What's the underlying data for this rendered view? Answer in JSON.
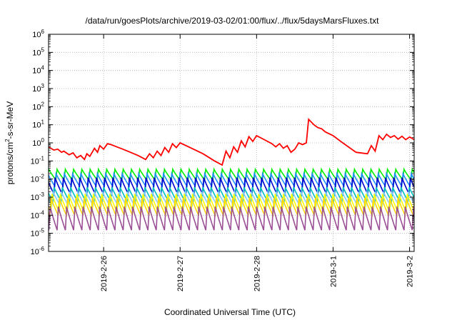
{
  "chart_data": {
    "type": "line",
    "title": "/data/run/goesPlots/archive/2019-03-02/01:00/flux/../flux/5daysMarsFluxes.txt",
    "xlabel": "Coordinated Universal Time (UTC)",
    "ylabel": "protons/cm2-s-sr-MeV",
    "ylabel_parts": {
      "prefix": "protons/cm",
      "superscript": "2",
      "suffix": "-s-sr-MeV"
    },
    "yscale": "log",
    "ylim": [
      1e-06,
      1000000.0
    ],
    "xlim_days": [
      -0.72,
      4.06
    ],
    "grid": true,
    "legend": "none",
    "x_ticks": [
      {
        "label": "2019-2-26",
        "day": 0
      },
      {
        "label": "2019-2-27",
        "day": 1
      },
      {
        "label": "2019-2-28",
        "day": 2
      },
      {
        "label": "2019-3-1",
        "day": 3
      },
      {
        "label": "2019-3-2",
        "day": 4
      }
    ],
    "y_ticks": [
      {
        "base": "10",
        "exp": "-6",
        "value": 1e-06
      },
      {
        "base": "10",
        "exp": "-5",
        "value": 1e-05
      },
      {
        "base": "10",
        "exp": "-4",
        "value": 0.0001
      },
      {
        "base": "10",
        "exp": "-3",
        "value": 0.001
      },
      {
        "base": "10",
        "exp": "-2",
        "value": 0.01
      },
      {
        "base": "10",
        "exp": "-1",
        "value": 0.1
      },
      {
        "base": "10",
        "exp": "0",
        "value": 1
      },
      {
        "base": "10",
        "exp": "1",
        "value": 10
      },
      {
        "base": "10",
        "exp": "2",
        "value": 100
      },
      {
        "base": "10",
        "exp": "3",
        "value": 1000
      },
      {
        "base": "10",
        "exp": "4",
        "value": 10000
      },
      {
        "base": "10",
        "exp": "5",
        "value": 100000
      },
      {
        "base": "10",
        "exp": "6",
        "value": 1000000
      }
    ],
    "series": [
      {
        "color": "#ff0000",
        "x_day": [
          -0.72,
          -0.65,
          -0.6,
          -0.55,
          -0.52,
          -0.45,
          -0.4,
          -0.35,
          -0.3,
          -0.25,
          -0.22,
          -0.18,
          -0.12,
          -0.08,
          -0.05,
          0.0,
          0.05,
          0.1,
          0.15,
          0.25,
          0.35,
          0.45,
          0.55,
          0.6,
          0.65,
          0.7,
          0.75,
          0.8,
          0.85,
          0.9,
          0.95,
          1.0,
          1.05,
          1.15,
          1.3,
          1.45,
          1.55,
          1.6,
          1.65,
          1.7,
          1.75,
          1.8,
          1.85,
          1.9,
          1.95,
          2.0,
          2.1,
          2.2,
          2.25,
          2.3,
          2.35,
          2.4,
          2.45,
          2.5,
          2.55,
          2.6,
          2.65,
          2.68,
          2.75,
          2.8,
          2.85,
          2.9,
          3.0,
          3.1,
          3.2,
          3.3,
          3.45,
          3.5,
          3.55,
          3.6,
          3.65,
          3.7,
          3.75,
          3.8,
          3.85,
          3.9,
          3.95,
          4.0,
          4.03,
          4.06
        ],
        "values": [
          0.6,
          0.4,
          0.45,
          0.3,
          0.35,
          0.22,
          0.28,
          0.15,
          0.2,
          0.12,
          0.25,
          0.18,
          0.5,
          0.3,
          0.7,
          0.45,
          0.9,
          0.8,
          0.65,
          0.45,
          0.3,
          0.2,
          0.12,
          0.25,
          0.15,
          0.35,
          0.2,
          0.55,
          0.3,
          0.9,
          0.55,
          1.0,
          0.8,
          0.5,
          0.25,
          0.1,
          0.06,
          0.35,
          0.15,
          0.6,
          0.3,
          1.3,
          0.6,
          2.2,
          1.2,
          2.5,
          1.5,
          0.9,
          0.6,
          0.9,
          0.5,
          0.7,
          0.3,
          0.45,
          1.0,
          0.8,
          1.0,
          20.0,
          10.0,
          7.0,
          6.0,
          4.0,
          2.5,
          1.2,
          0.6,
          0.3,
          0.25,
          0.7,
          0.35,
          2.5,
          1.5,
          3.0,
          2.0,
          2.5,
          1.6,
          2.3,
          1.5,
          2.1,
          1.8,
          1.5
        ]
      },
      {
        "color": "#00ee00",
        "hi": 0.035,
        "lo": 0.009
      },
      {
        "color": "#1e90ff",
        "hi": 0.02,
        "lo": 0.004
      },
      {
        "color": "#0000cd",
        "hi": 0.012,
        "lo": 0.0015
      },
      {
        "color": "#00bfbf",
        "hi": 0.0035,
        "lo": 0.0006
      },
      {
        "color": "#87cefa",
        "hi": 0.002,
        "lo": 0.00035
      },
      {
        "color": "#ffff00",
        "hi": 0.0015,
        "lo": 0.00015
      },
      {
        "color": "#ffd700",
        "hi": 0.0009,
        "lo": 0.0001
      },
      {
        "color": "#9b4f96",
        "hi": 0.0003,
        "lo": 1.5e-05
      }
    ],
    "periodic_pattern": {
      "period_days": 0.108,
      "start_day": -0.72,
      "end_day": 4.06
    }
  }
}
